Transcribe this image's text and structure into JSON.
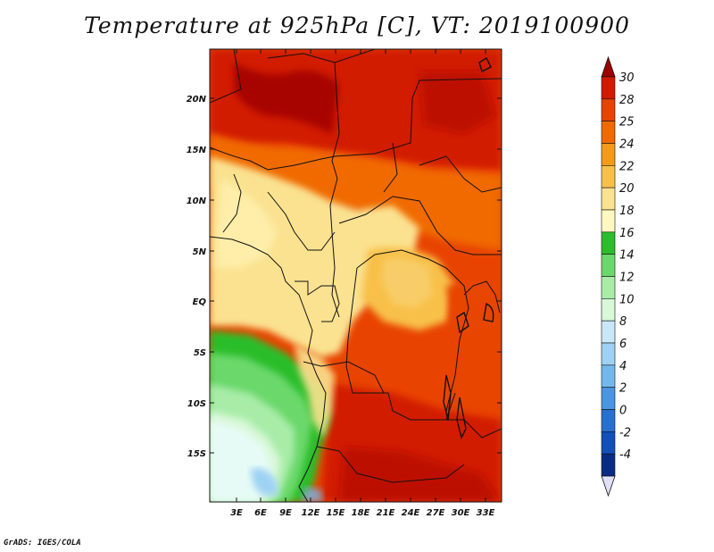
{
  "title": "Temperature at 925hPa [C], VT: 2019100900",
  "credit": "GrADS: IGES/COLA",
  "map": {
    "lat_labels": [
      "20N",
      "15N",
      "10N",
      "5N",
      "EQ",
      "5S",
      "10S",
      "15S"
    ],
    "lon_labels": [
      "3E",
      "6E",
      "9E",
      "12E",
      "15E",
      "18E",
      "21E",
      "24E",
      "27E",
      "30E",
      "33E"
    ]
  },
  "colorbar": {
    "levels": [
      "30",
      "28",
      "25",
      "24",
      "22",
      "20",
      "18",
      "16",
      "14",
      "12",
      "10",
      "8",
      "6",
      "4",
      "2",
      "0",
      "-2",
      "-4"
    ],
    "colors": [
      "#a00000",
      "#d21a00",
      "#e84400",
      "#f06a00",
      "#f59a18",
      "#f8c048",
      "#fae290",
      "#fff8c0",
      "#2bbd2b",
      "#6bd86b",
      "#a8eca8",
      "#d8f8d8",
      "#c8e8f8",
      "#9ed2f4",
      "#72b8ee",
      "#4a96e2",
      "#2870d0",
      "#1050b8",
      "#082c84",
      "#e0e0f8"
    ]
  },
  "legend_colors": {
    "hot": "#d21a00",
    "warm": "#f06a00",
    "mild": "#f8c048",
    "cool_green": "#6bd86b",
    "cold_blue": "#9ed2f4"
  }
}
